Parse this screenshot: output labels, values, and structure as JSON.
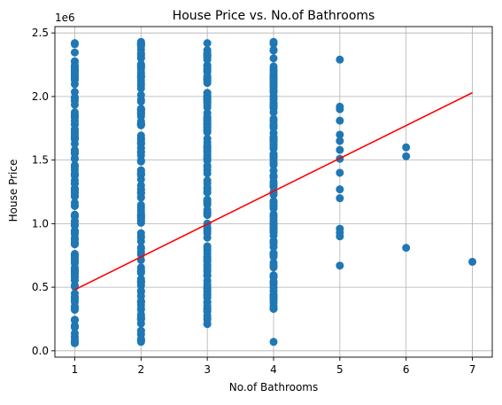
{
  "chart_data": {
    "type": "scatter",
    "title": "House Price vs. No.of Bathrooms",
    "xlabel": "No.of Bathrooms",
    "ylabel": "House Price",
    "y_offset_label": "1e6",
    "y_scale_factor": 1000000,
    "xlim": [
      0.7,
      7.3
    ],
    "ylim": [
      -0.05,
      2.55
    ],
    "x_ticks": [
      1,
      2,
      3,
      4,
      5,
      6,
      7
    ],
    "y_ticks": [
      0.0,
      0.5,
      1.0,
      1.5,
      2.0,
      2.5
    ],
    "y_tick_labels": [
      "0.0",
      "0.5",
      "1.0",
      "1.5",
      "2.0",
      "2.5"
    ],
    "grid": true,
    "point_color": "#1f77b4",
    "fit_line_color": "#ff0000",
    "dense_columns": [
      {
        "x": 1,
        "y_range": [
          0.06,
          2.42
        ]
      },
      {
        "x": 2,
        "y_range": [
          0.07,
          2.43
        ]
      },
      {
        "x": 3,
        "y_range": [
          0.21,
          2.42
        ]
      },
      {
        "x": 4,
        "y_range": [
          0.33,
          2.43
        ]
      }
    ],
    "points": [
      {
        "x": 4,
        "y": 0.07
      },
      {
        "x": 4,
        "y": 0.33
      },
      {
        "x": 4,
        "y": 0.41
      },
      {
        "x": 5,
        "y": 2.29
      },
      {
        "x": 5,
        "y": 1.92
      },
      {
        "x": 5,
        "y": 1.9
      },
      {
        "x": 5,
        "y": 1.81
      },
      {
        "x": 5,
        "y": 1.7
      },
      {
        "x": 5,
        "y": 1.65
      },
      {
        "x": 5,
        "y": 1.58
      },
      {
        "x": 5,
        "y": 1.51
      },
      {
        "x": 5,
        "y": 1.4
      },
      {
        "x": 5,
        "y": 1.27
      },
      {
        "x": 5,
        "y": 1.2
      },
      {
        "x": 5,
        "y": 0.96
      },
      {
        "x": 5,
        "y": 0.93
      },
      {
        "x": 5,
        "y": 0.9
      },
      {
        "x": 5,
        "y": 0.67
      },
      {
        "x": 6,
        "y": 1.6
      },
      {
        "x": 6,
        "y": 1.53
      },
      {
        "x": 6,
        "y": 0.81
      },
      {
        "x": 7,
        "y": 0.7
      }
    ],
    "fit_line": {
      "x": [
        1,
        7
      ],
      "y": [
        0.48,
        2.03
      ]
    }
  }
}
